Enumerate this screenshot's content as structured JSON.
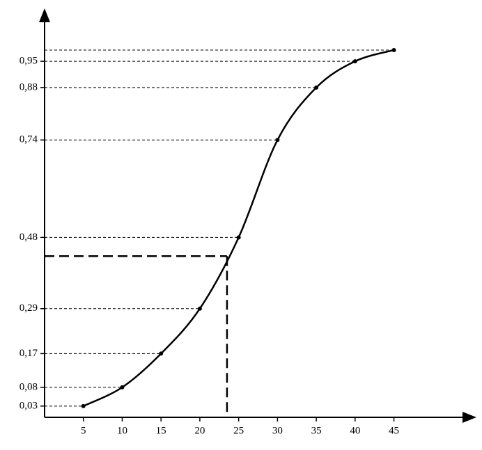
{
  "chart_data": {
    "type": "line",
    "x": [
      5,
      10,
      15,
      20,
      25,
      30,
      35,
      40,
      45
    ],
    "values": [
      0.03,
      0.08,
      0.17,
      0.29,
      0.48,
      0.74,
      0.88,
      0.95,
      0.98
    ],
    "color": "#000000",
    "xlim": [
      0,
      55
    ],
    "ylim": [
      0,
      1.03
    ],
    "xticks": [
      5,
      10,
      15,
      20,
      25,
      30,
      35,
      40,
      45
    ],
    "yticks": [
      {
        "value": 0.03,
        "label": "0,03"
      },
      {
        "value": 0.08,
        "label": "0,08"
      },
      {
        "value": 0.17,
        "label": "0,17"
      },
      {
        "value": 0.29,
        "label": "0,29"
      },
      {
        "value": 0.48,
        "label": "0,48"
      },
      {
        "value": 0.74,
        "label": "0,74"
      },
      {
        "value": 0.88,
        "label": "0,88"
      },
      {
        "value": 0.95,
        "label": "0,95"
      }
    ],
    "guide": {
      "x": 23.5,
      "y": 0.43
    }
  }
}
